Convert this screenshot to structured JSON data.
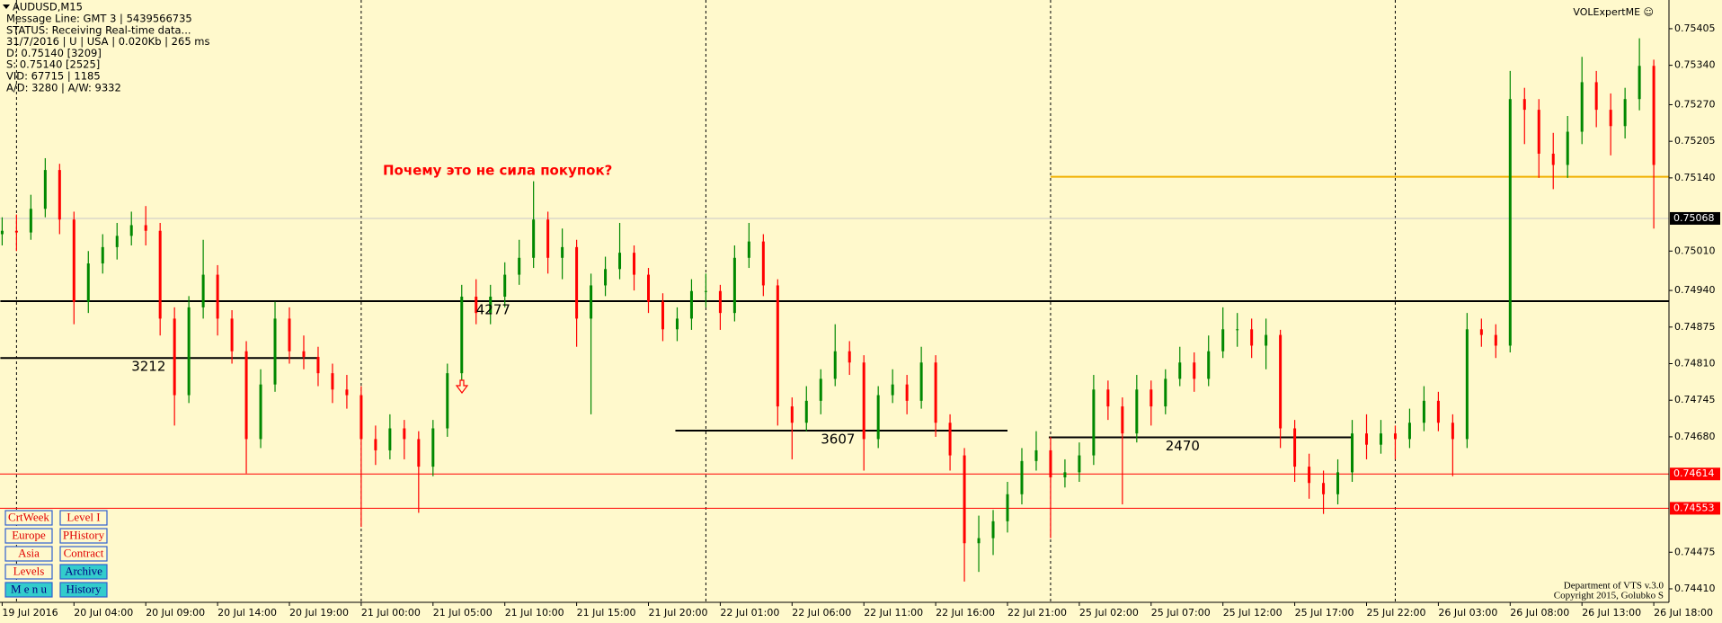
{
  "header": {
    "symbol": "AUDUSD,M15",
    "lines": [
      "Message Line: GMT 3 | 5439566735",
      "STATUS:  Receiving Real-time data...",
      "31/7/2016 | U | USA | 0.020Kb | 265 ms",
      "D: 0.75140  [3209]",
      "S: 0.75140  [2525]",
      "VID: 67715 | 1185",
      "A/D: 3280 | A/W: 9332"
    ]
  },
  "brand": "VOLExpertME ☺",
  "footer": [
    "Department of VTS  v.3.0",
    "Copyright 2015, Golubko S"
  ],
  "buttons": [
    {
      "label": "CrtWeek",
      "bg": "#fff9cc",
      "color": "#e00000"
    },
    {
      "label": "Level I",
      "bg": "#fff9cc",
      "color": "#e00000"
    },
    {
      "label": "Europe",
      "bg": "#fff9cc",
      "color": "#e00000"
    },
    {
      "label": "PHistory",
      "bg": "#fff9cc",
      "color": "#e00000"
    },
    {
      "label": "Asia",
      "bg": "#fff9cc",
      "color": "#e00000"
    },
    {
      "label": "Contract",
      "bg": "#fff9cc",
      "color": "#e00000"
    },
    {
      "label": "Levels",
      "bg": "#fff9cc",
      "color": "#e00000"
    },
    {
      "label": "Archive",
      "bg": "#33cccc",
      "color": "#000080"
    },
    {
      "label": "M e n u",
      "bg": "#33cccc",
      "color": "#000080"
    },
    {
      "label": "History",
      "bg": "#33cccc",
      "color": "#000080"
    }
  ],
  "chart_data": {
    "type": "candlestick",
    "annotation": "Почему это не сила покупок?",
    "up_color": "#008800",
    "down_color": "#ff0000",
    "ylim": [
      0.74386,
      0.75456
    ],
    "yticks": [
      0.75405,
      {
        "value": 0.7534,
        "label": "0.75340"
      },
      {
        "value": 0.7527,
        "label": "0.75270"
      },
      0.75205,
      {
        "value": 0.7514,
        "label": "0.75140"
      },
      {
        "value": 0.7501,
        "label": "0.75010"
      },
      {
        "value": 0.7494,
        "label": "0.74940"
      },
      0.74875,
      {
        "value": 0.7481,
        "label": "0.74810"
      },
      0.74745,
      {
        "value": 0.7468,
        "label": "0.74680"
      },
      0.74475,
      {
        "value": 0.7441,
        "label": "0.74410"
      }
    ],
    "price_markers": [
      {
        "value": 0.75068,
        "color": "#000000",
        "line_color": "#c8c8c8"
      },
      {
        "value": 0.74614,
        "color": "#ff0000",
        "line_color": "#ff0000"
      },
      {
        "value": 0.74553,
        "color": "#ff0000",
        "line_color": "#ff0000"
      }
    ],
    "hlines": [
      {
        "value": 0.75142,
        "color": "#f0b000"
      }
    ],
    "levels": [
      {
        "label": "3212",
        "price": 0.7482
      },
      {
        "label": "4277",
        "price": 0.74921
      },
      {
        "label": "3607",
        "price": 0.74691
      },
      {
        "label": "2470",
        "price": 0.74679
      }
    ],
    "categories": [
      "19 Jul 2016",
      null,
      null,
      null,
      null,
      "20 Jul 04:00",
      null,
      null,
      null,
      null,
      "20 Jul 09:00",
      null,
      null,
      null,
      null,
      "20 Jul 14:00",
      null,
      null,
      null,
      null,
      "20 Jul 19:00",
      null,
      null,
      null,
      null,
      "21 Jul 00:00",
      null,
      null,
      null,
      null,
      "21 Jul 05:00",
      null,
      null,
      null,
      null,
      "21 Jul 10:00",
      null,
      null,
      null,
      null,
      "21 Jul 15:00",
      null,
      null,
      null,
      null,
      "21 Jul 20:00",
      null,
      null,
      null,
      null,
      "22 Jul 01:00",
      null,
      null,
      null,
      null,
      "22 Jul 06:00",
      null,
      null,
      null,
      null,
      "22 Jul 11:00",
      null,
      null,
      null,
      null,
      "22 Jul 16:00",
      null,
      null,
      null,
      null,
      "22 Jul 21:00",
      null,
      null,
      null,
      null,
      "25 Jul 02:00",
      null,
      null,
      null,
      null,
      "25 Jul 07:00",
      null,
      null,
      null,
      null,
      "25 Jul 12:00",
      null,
      null,
      null,
      null,
      "25 Jul 17:00",
      null,
      null,
      null,
      null,
      "25 Jul 22:00",
      null,
      null,
      null,
      null,
      "26 Jul 03:00",
      null,
      null,
      null,
      null,
      "26 Jul 08:00",
      null,
      null,
      null,
      null,
      "26 Jul 13:00",
      null,
      null,
      null,
      null,
      "26 Jul 18:00"
    ],
    "candles": [
      [
        0.7504,
        0.7507,
        0.7502,
        0.75046
      ],
      [
        0.75046,
        0.75075,
        0.7501,
        0.75043
      ],
      [
        0.75043,
        0.7511,
        0.7503,
        0.75085
      ],
      [
        0.75085,
        0.75175,
        0.7507,
        0.75154
      ],
      [
        0.75154,
        0.75165,
        0.7504,
        0.75066
      ],
      [
        0.75066,
        0.7508,
        0.7488,
        0.7492
      ],
      [
        0.7492,
        0.7501,
        0.749,
        0.74988
      ],
      [
        0.74988,
        0.7504,
        0.7497,
        0.75017
      ],
      [
        0.75017,
        0.7506,
        0.74995,
        0.75037
      ],
      [
        0.75037,
        0.7508,
        0.7502,
        0.75056
      ],
      [
        0.75056,
        0.7509,
        0.7502,
        0.75046
      ],
      [
        0.75046,
        0.7506,
        0.7486,
        0.7489
      ],
      [
        0.7489,
        0.7491,
        0.747,
        0.74754
      ],
      [
        0.74754,
        0.7493,
        0.7474,
        0.7491
      ],
      [
        0.7491,
        0.7503,
        0.7489,
        0.74968
      ],
      [
        0.74968,
        0.74985,
        0.7486,
        0.7489
      ],
      [
        0.7489,
        0.74905,
        0.7481,
        0.74832
      ],
      [
        0.74832,
        0.7485,
        0.74615,
        0.74676
      ],
      [
        0.74676,
        0.748,
        0.7466,
        0.74773
      ],
      [
        0.74773,
        0.7492,
        0.7476,
        0.7489
      ],
      [
        0.7489,
        0.7491,
        0.7481,
        0.74832
      ],
      [
        0.74832,
        0.7486,
        0.748,
        0.74822
      ],
      [
        0.74822,
        0.7484,
        0.7477,
        0.74793
      ],
      [
        0.74793,
        0.7481,
        0.7474,
        0.74764
      ],
      [
        0.74764,
        0.7479,
        0.7473,
        0.74754
      ],
      [
        0.74754,
        0.7477,
        0.7452,
        0.74676
      ],
      [
        0.74676,
        0.747,
        0.7463,
        0.74656
      ],
      [
        0.74656,
        0.7472,
        0.7464,
        0.74695
      ],
      [
        0.74695,
        0.7471,
        0.7464,
        0.74676
      ],
      [
        0.74676,
        0.7469,
        0.74545,
        0.74627
      ],
      [
        0.74627,
        0.7471,
        0.7461,
        0.74695
      ],
      [
        0.74695,
        0.7481,
        0.7468,
        0.74793
      ],
      [
        0.74793,
        0.7495,
        0.7478,
        0.74929
      ],
      [
        0.74929,
        0.7496,
        0.7488,
        0.749
      ],
      [
        0.749,
        0.7495,
        0.7488,
        0.74929
      ],
      [
        0.74929,
        0.7499,
        0.7491,
        0.74968
      ],
      [
        0.74968,
        0.7503,
        0.7495,
        0.74998
      ],
      [
        0.74998,
        0.75134,
        0.7498,
        0.75066
      ],
      [
        0.75066,
        0.7508,
        0.7497,
        0.74998
      ],
      [
        0.74998,
        0.7505,
        0.7496,
        0.75017
      ],
      [
        0.75017,
        0.7503,
        0.7484,
        0.7489
      ],
      [
        0.7489,
        0.7497,
        0.7472,
        0.74949
      ],
      [
        0.74949,
        0.75,
        0.7493,
        0.74978
      ],
      [
        0.74978,
        0.7506,
        0.7496,
        0.75007
      ],
      [
        0.75007,
        0.7502,
        0.7494,
        0.74968
      ],
      [
        0.74968,
        0.7498,
        0.749,
        0.7492
      ],
      [
        0.7492,
        0.74935,
        0.7485,
        0.74871
      ],
      [
        0.74871,
        0.7491,
        0.7485,
        0.7489
      ],
      [
        0.7489,
        0.7496,
        0.7487,
        0.74939
      ],
      [
        0.74939,
        0.7497,
        0.7491,
        0.74939
      ],
      [
        0.74939,
        0.7495,
        0.7487,
        0.749
      ],
      [
        0.749,
        0.7502,
        0.74885,
        0.74998
      ],
      [
        0.74998,
        0.7506,
        0.7498,
        0.75027
      ],
      [
        0.75027,
        0.7504,
        0.7493,
        0.74949
      ],
      [
        0.74949,
        0.7496,
        0.747,
        0.74734
      ],
      [
        0.74734,
        0.7475,
        0.7464,
        0.74705
      ],
      [
        0.74705,
        0.7477,
        0.7469,
        0.74744
      ],
      [
        0.74744,
        0.748,
        0.7472,
        0.74783
      ],
      [
        0.74783,
        0.7488,
        0.7477,
        0.74832
      ],
      [
        0.74832,
        0.7485,
        0.7479,
        0.74812
      ],
      [
        0.74812,
        0.74825,
        0.7462,
        0.74676
      ],
      [
        0.74676,
        0.7477,
        0.7466,
        0.74754
      ],
      [
        0.74754,
        0.748,
        0.7474,
        0.74773
      ],
      [
        0.74773,
        0.7479,
        0.7472,
        0.74744
      ],
      [
        0.74744,
        0.7484,
        0.7473,
        0.74812
      ],
      [
        0.74812,
        0.74825,
        0.7468,
        0.74705
      ],
      [
        0.74705,
        0.7472,
        0.7462,
        0.74647
      ],
      [
        0.74647,
        0.7466,
        0.74423,
        0.74491
      ],
      [
        0.74491,
        0.7454,
        0.7444,
        0.745
      ],
      [
        0.745,
        0.7455,
        0.7447,
        0.7453
      ],
      [
        0.7453,
        0.746,
        0.7451,
        0.74578
      ],
      [
        0.74578,
        0.7466,
        0.7456,
        0.74637
      ],
      [
        0.74637,
        0.7469,
        0.7462,
        0.74656
      ],
      [
        0.74656,
        0.7468,
        0.745,
        0.74608
      ],
      [
        0.74608,
        0.7464,
        0.7459,
        0.74617
      ],
      [
        0.74617,
        0.7467,
        0.746,
        0.74647
      ],
      [
        0.74647,
        0.7479,
        0.7463,
        0.74764
      ],
      [
        0.74764,
        0.7478,
        0.7471,
        0.74734
      ],
      [
        0.74734,
        0.7475,
        0.7456,
        0.74686
      ],
      [
        0.74686,
        0.7479,
        0.7467,
        0.74764
      ],
      [
        0.74764,
        0.7478,
        0.747,
        0.74734
      ],
      [
        0.74734,
        0.748,
        0.7472,
        0.74783
      ],
      [
        0.74783,
        0.7484,
        0.7477,
        0.74812
      ],
      [
        0.74812,
        0.7483,
        0.7476,
        0.74783
      ],
      [
        0.74783,
        0.7486,
        0.7477,
        0.74832
      ],
      [
        0.74832,
        0.7491,
        0.7482,
        0.74871
      ],
      [
        0.74871,
        0.749,
        0.7484,
        0.74871
      ],
      [
        0.74871,
        0.7489,
        0.7482,
        0.74842
      ],
      [
        0.74842,
        0.7489,
        0.748,
        0.74861
      ],
      [
        0.74861,
        0.7487,
        0.7466,
        0.74695
      ],
      [
        0.74695,
        0.7471,
        0.746,
        0.74627
      ],
      [
        0.74627,
        0.7465,
        0.7457,
        0.74598
      ],
      [
        0.74598,
        0.7462,
        0.74543,
        0.74578
      ],
      [
        0.74578,
        0.7464,
        0.7456,
        0.74617
      ],
      [
        0.74617,
        0.7471,
        0.746,
        0.74686
      ],
      [
        0.74686,
        0.7472,
        0.7464,
        0.74666
      ],
      [
        0.74666,
        0.7471,
        0.7465,
        0.74686
      ],
      [
        0.74686,
        0.747,
        0.7464,
        0.74676
      ],
      [
        0.74676,
        0.7473,
        0.7466,
        0.74705
      ],
      [
        0.74705,
        0.7477,
        0.7469,
        0.74744
      ],
      [
        0.74744,
        0.7476,
        0.7469,
        0.74705
      ],
      [
        0.74705,
        0.7472,
        0.7461,
        0.74676
      ],
      [
        0.74676,
        0.749,
        0.7466,
        0.74871
      ],
      [
        0.74871,
        0.7489,
        0.7484,
        0.74861
      ],
      [
        0.74861,
        0.7488,
        0.7482,
        0.74842
      ],
      [
        0.74842,
        0.7533,
        0.7483,
        0.7528
      ],
      [
        0.7528,
        0.753,
        0.752,
        0.75261
      ],
      [
        0.75261,
        0.7528,
        0.7514,
        0.75183
      ],
      [
        0.75183,
        0.7522,
        0.7512,
        0.75163
      ],
      [
        0.75163,
        0.7525,
        0.7514,
        0.75222
      ],
      [
        0.75222,
        0.75355,
        0.752,
        0.7531
      ],
      [
        0.7531,
        0.7533,
        0.7523,
        0.75261
      ],
      [
        0.75261,
        0.7529,
        0.7518,
        0.75232
      ],
      [
        0.75232,
        0.753,
        0.7521,
        0.7528
      ],
      [
        0.7528,
        0.75388,
        0.7526,
        0.75339
      ],
      [
        0.75339,
        0.7535,
        0.7505,
        0.75163
      ]
    ]
  }
}
